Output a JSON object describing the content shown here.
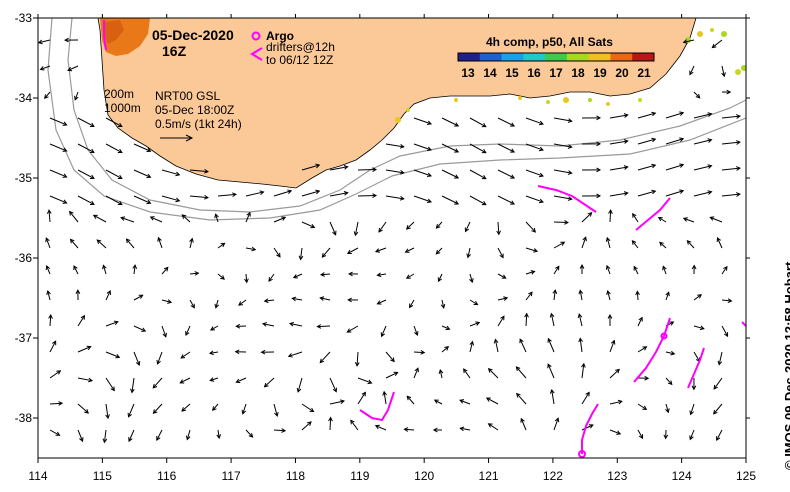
{
  "title": {
    "date": "05-Dec-2020",
    "time": "16Z"
  },
  "legend": {
    "argo_label": "Argo",
    "drifters_line1": "drifters@12h",
    "drifters_line2": "to 06/12 12Z",
    "colorbar_title": "4h comp, p50, All Sats",
    "colorbar_ticks": [
      "13",
      "14",
      "15",
      "16",
      "17",
      "18",
      "19",
      "20",
      "21"
    ],
    "colorbar_colors": [
      "#20208a",
      "#1f5fd0",
      "#1aa0e8",
      "#20c8c8",
      "#40c850",
      "#a8d820",
      "#f0c020",
      "#e86818",
      "#b81818"
    ],
    "argo_color": "#ff00ff",
    "drifter_color": "#ff00ff",
    "land_color": "#fbc898"
  },
  "info": {
    "isobath_200": "200m",
    "isobath_1000": "1000m",
    "source": "NRT00 GSL",
    "datetime": "05-Dec 18:00Z",
    "scale": "0.5m/s (1kt 24h)"
  },
  "axes": {
    "x_ticks": [
      "114",
      "115",
      "116",
      "117",
      "118",
      "119",
      "120",
      "121",
      "122",
      "123",
      "124",
      "125"
    ],
    "y_ticks": [
      "-33",
      "-34",
      "-35",
      "-36",
      "-37",
      "-38"
    ],
    "lon_range": [
      114,
      125
    ],
    "lat_range": [
      -38.5,
      -33
    ]
  },
  "credit": "© IMOS 09-Dec-2020 12:58 Hobart"
}
